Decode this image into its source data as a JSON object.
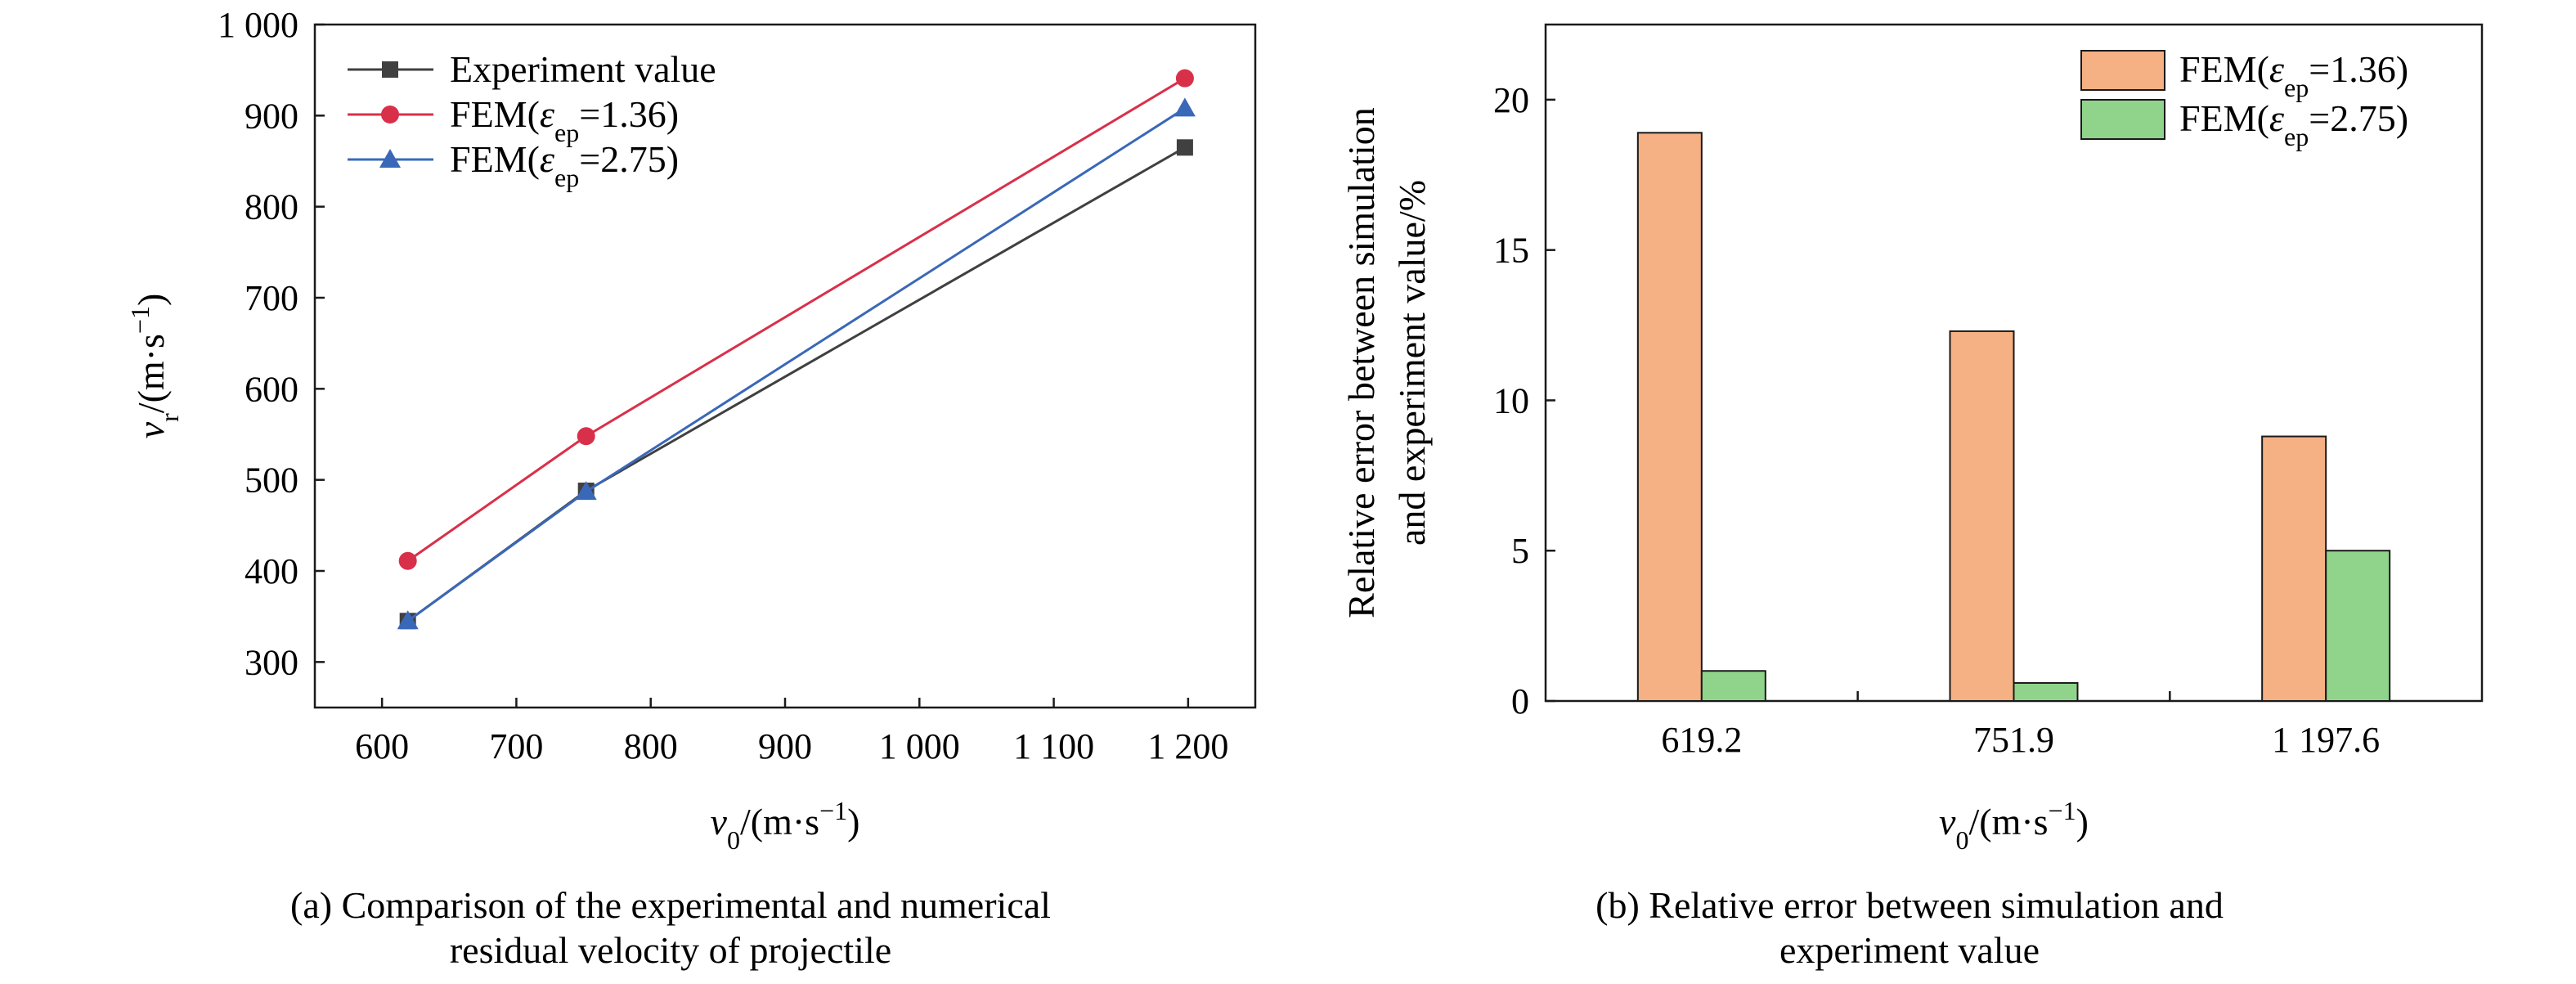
{
  "chart_data": [
    {
      "type": "line",
      "caption_lines": [
        "(a) Comparison of the experimental and numerical",
        "residual velocity of projectile"
      ],
      "xlabel": {
        "base": "v",
        "sub": "0",
        "unit": "/(m·s",
        "sup": "−1",
        "close": ")"
      },
      "ylabel": {
        "base": "v",
        "sub": "r",
        "unit": "/(m·s",
        "sup": "−1",
        "close": ")"
      },
      "xlim": [
        550,
        1250
      ],
      "ylim": [
        250,
        1000
      ],
      "xticks": [
        600,
        700,
        800,
        900,
        1000,
        1100,
        1200
      ],
      "xtick_labels": [
        "600",
        "700",
        "800",
        "900",
        "1 000",
        "1 100",
        "1 200"
      ],
      "yticks": [
        300,
        400,
        500,
        600,
        700,
        800,
        900,
        1000
      ],
      "ytick_labels": [
        "300",
        "400",
        "500",
        "600",
        "700",
        "800",
        "900",
        "1 000"
      ],
      "grid": false,
      "legend_position": "top-left",
      "series": [
        {
          "legend": {
            "text": "Experiment value"
          },
          "color": "#404040",
          "marker": "square",
          "x": [
            619.2,
            751.9,
            1197.6
          ],
          "y": [
            345,
            488,
            865
          ]
        },
        {
          "legend": {
            "pre": "FEM(",
            "eps": "ε",
            "sub": "ep",
            "post": "=1.36)"
          },
          "color": "#d9304a",
          "marker": "circle",
          "x": [
            619.2,
            751.9,
            1197.6
          ],
          "y": [
            411,
            548,
            941
          ]
        },
        {
          "legend": {
            "pre": "FEM(",
            "eps": "ε",
            "sub": "ep",
            "post": "=2.75)"
          },
          "color": "#3a68b8",
          "marker": "triangle",
          "x": [
            619.2,
            751.9,
            1197.6
          ],
          "y": [
            345,
            487,
            908
          ]
        }
      ]
    },
    {
      "type": "bar",
      "caption_lines": [
        "(b) Relative error between simulation and",
        "experiment value"
      ],
      "categories": [
        "619.2",
        "751.9",
        "1 197.6"
      ],
      "xlabel": {
        "base": "v",
        "sub": "0",
        "unit": "/(m·s",
        "sup": "−1",
        "close": ")"
      },
      "ylabel_lines": [
        "Relative error between simulation",
        "and experiment value/%"
      ],
      "ylim": [
        0,
        22.5
      ],
      "yticks": [
        0,
        5,
        10,
        15,
        20
      ],
      "ytick_labels": [
        "0",
        "5",
        "10",
        "15",
        "20"
      ],
      "grid": false,
      "legend_position": "top-right",
      "series": [
        {
          "legend": {
            "pre": "FEM(",
            "eps": "ε",
            "sub": "ep",
            "post": "=1.36)"
          },
          "color": "#f5b084",
          "values": [
            18.9,
            12.3,
            8.8
          ]
        },
        {
          "legend": {
            "pre": "FEM(",
            "eps": "ε",
            "sub": "ep",
            "post": "=2.75)"
          },
          "color": "#8fd48a",
          "values": [
            1.0,
            0.6,
            5.0
          ]
        }
      ]
    }
  ]
}
